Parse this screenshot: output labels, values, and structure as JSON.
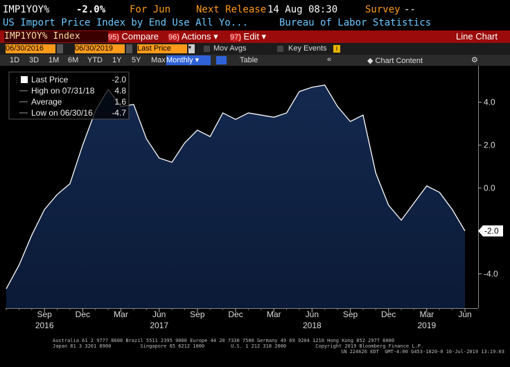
{
  "header": {
    "ticker": "IMP1YOY%",
    "last": "-2.0%",
    "period": "For Jun",
    "release_label": "Next Release",
    "release": "14 Aug 08:30",
    "survey_label": "Survey",
    "survey": "--",
    "description": "US Import Price Index by End Use All Yo...",
    "source": "Bureau of Labor Statistics"
  },
  "toolbar": {
    "security": "IMP1YOY% Index",
    "buttons": [
      {
        "key": "95)",
        "label": "Compare"
      },
      {
        "key": "96)",
        "label": "Actions"
      },
      {
        "key": "97)",
        "label": "Edit"
      }
    ],
    "view": "Line Chart"
  },
  "controls": {
    "start": "06/30/2016",
    "end": "06/30/2019",
    "field": "Last Price",
    "mov_avgs": "Mov Avgs",
    "key_events": "Key Events"
  },
  "ranges": [
    "1D",
    "3D",
    "1M",
    "6M",
    "YTD",
    "1Y",
    "5Y",
    "Max"
  ],
  "frequency": "Monthly",
  "table": "Table",
  "chart_content": "Chart Content",
  "chart_data": {
    "type": "area",
    "color": "#ffffff",
    "fill": "#0f2244",
    "x": [
      "2016-06",
      "2016-07",
      "2016-08",
      "2016-09",
      "2016-10",
      "2016-11",
      "2016-12",
      "2017-01",
      "2017-02",
      "2017-03",
      "2017-04",
      "2017-05",
      "2017-06",
      "2017-07",
      "2017-08",
      "2017-09",
      "2017-10",
      "2017-11",
      "2017-12",
      "2018-01",
      "2018-02",
      "2018-03",
      "2018-04",
      "2018-05",
      "2018-06",
      "2018-07",
      "2018-08",
      "2018-09",
      "2018-10",
      "2018-11",
      "2018-12",
      "2019-01",
      "2019-02",
      "2019-03",
      "2019-04",
      "2019-05",
      "2019-06"
    ],
    "values": [
      -4.7,
      -3.6,
      -2.2,
      -1.0,
      -0.3,
      0.2,
      2.0,
      3.6,
      4.6,
      3.8,
      3.9,
      2.3,
      1.4,
      1.2,
      2.1,
      2.7,
      2.4,
      3.5,
      3.2,
      3.5,
      3.4,
      3.3,
      3.5,
      4.5,
      4.7,
      4.8,
      3.8,
      3.1,
      3.4,
      0.7,
      -0.8,
      -1.5,
      -0.7,
      0.1,
      -0.2,
      -1.0,
      -2.0
    ],
    "value_labels": [
      null,
      null,
      null,
      null,
      null,
      null,
      null,
      null,
      null,
      null,
      null,
      null,
      null,
      null,
      null,
      null,
      null,
      null,
      null,
      null,
      null,
      null,
      null,
      null,
      null,
      null,
      null,
      null,
      null,
      null,
      null,
      null,
      null,
      null,
      null,
      null,
      "-2.0"
    ],
    "ylim": [
      -5.6,
      5.7
    ],
    "yticks": [
      {
        "value": 4,
        "label": "4.0"
      },
      {
        "value": 2,
        "label": "2.0"
      },
      {
        "value": 0,
        "label": "0.0"
      },
      {
        "value": -2,
        "label": "-2.0"
      },
      {
        "value": -4,
        "label": "-4.0"
      }
    ],
    "xticks": [
      {
        "value": "2016-09",
        "label": "Sep"
      },
      {
        "value": "2016-12",
        "label": "Dec"
      },
      {
        "value": "2017-03",
        "label": "Mar"
      },
      {
        "value": "2017-06",
        "label": "Jun"
      },
      {
        "value": "2017-09",
        "label": "Sep"
      },
      {
        "value": "2017-12",
        "label": "Dec"
      },
      {
        "value": "2018-03",
        "label": "Mar"
      },
      {
        "value": "2018-06",
        "label": "Jun"
      },
      {
        "value": "2018-09",
        "label": "Sep"
      },
      {
        "value": "2018-12",
        "label": "Dec"
      },
      {
        "value": "2019-03",
        "label": "Mar"
      },
      {
        "value": "2019-06",
        "label": "Jun"
      }
    ],
    "year_labels": [
      {
        "value": "2016-09",
        "label": "2016"
      },
      {
        "value": "2017-06",
        "label": "2017"
      },
      {
        "value": "2018-06",
        "label": "2018"
      },
      {
        "value": "2019-03",
        "label": "2019"
      }
    ],
    "legend": [
      {
        "label": "Last Price",
        "value": "-2.0"
      },
      {
        "label": "High on 07/31/18",
        "value": "4.8"
      },
      {
        "label": "Average",
        "value": "1.6"
      },
      {
        "label": "Low on 06/30/16",
        "value": "-4.7"
      }
    ]
  },
  "footer": [
    "Australia 61 2 9777 8600 Brazil 5511 2395 9000 Europe 44 20 7330 7500 Germany 49 69 9204 1210 Hong Kong 852 2977 6000",
    "Japan 81 3 3201 8900          Singapore 65 6212 1000         U.S. 1 212 318 2000          Copyright 2019 Bloomberg Finance L.P.",
    "SN 224626 EDT  GMT-4:00 G453-1820-0 16-Jul-2019 13:19:03"
  ]
}
